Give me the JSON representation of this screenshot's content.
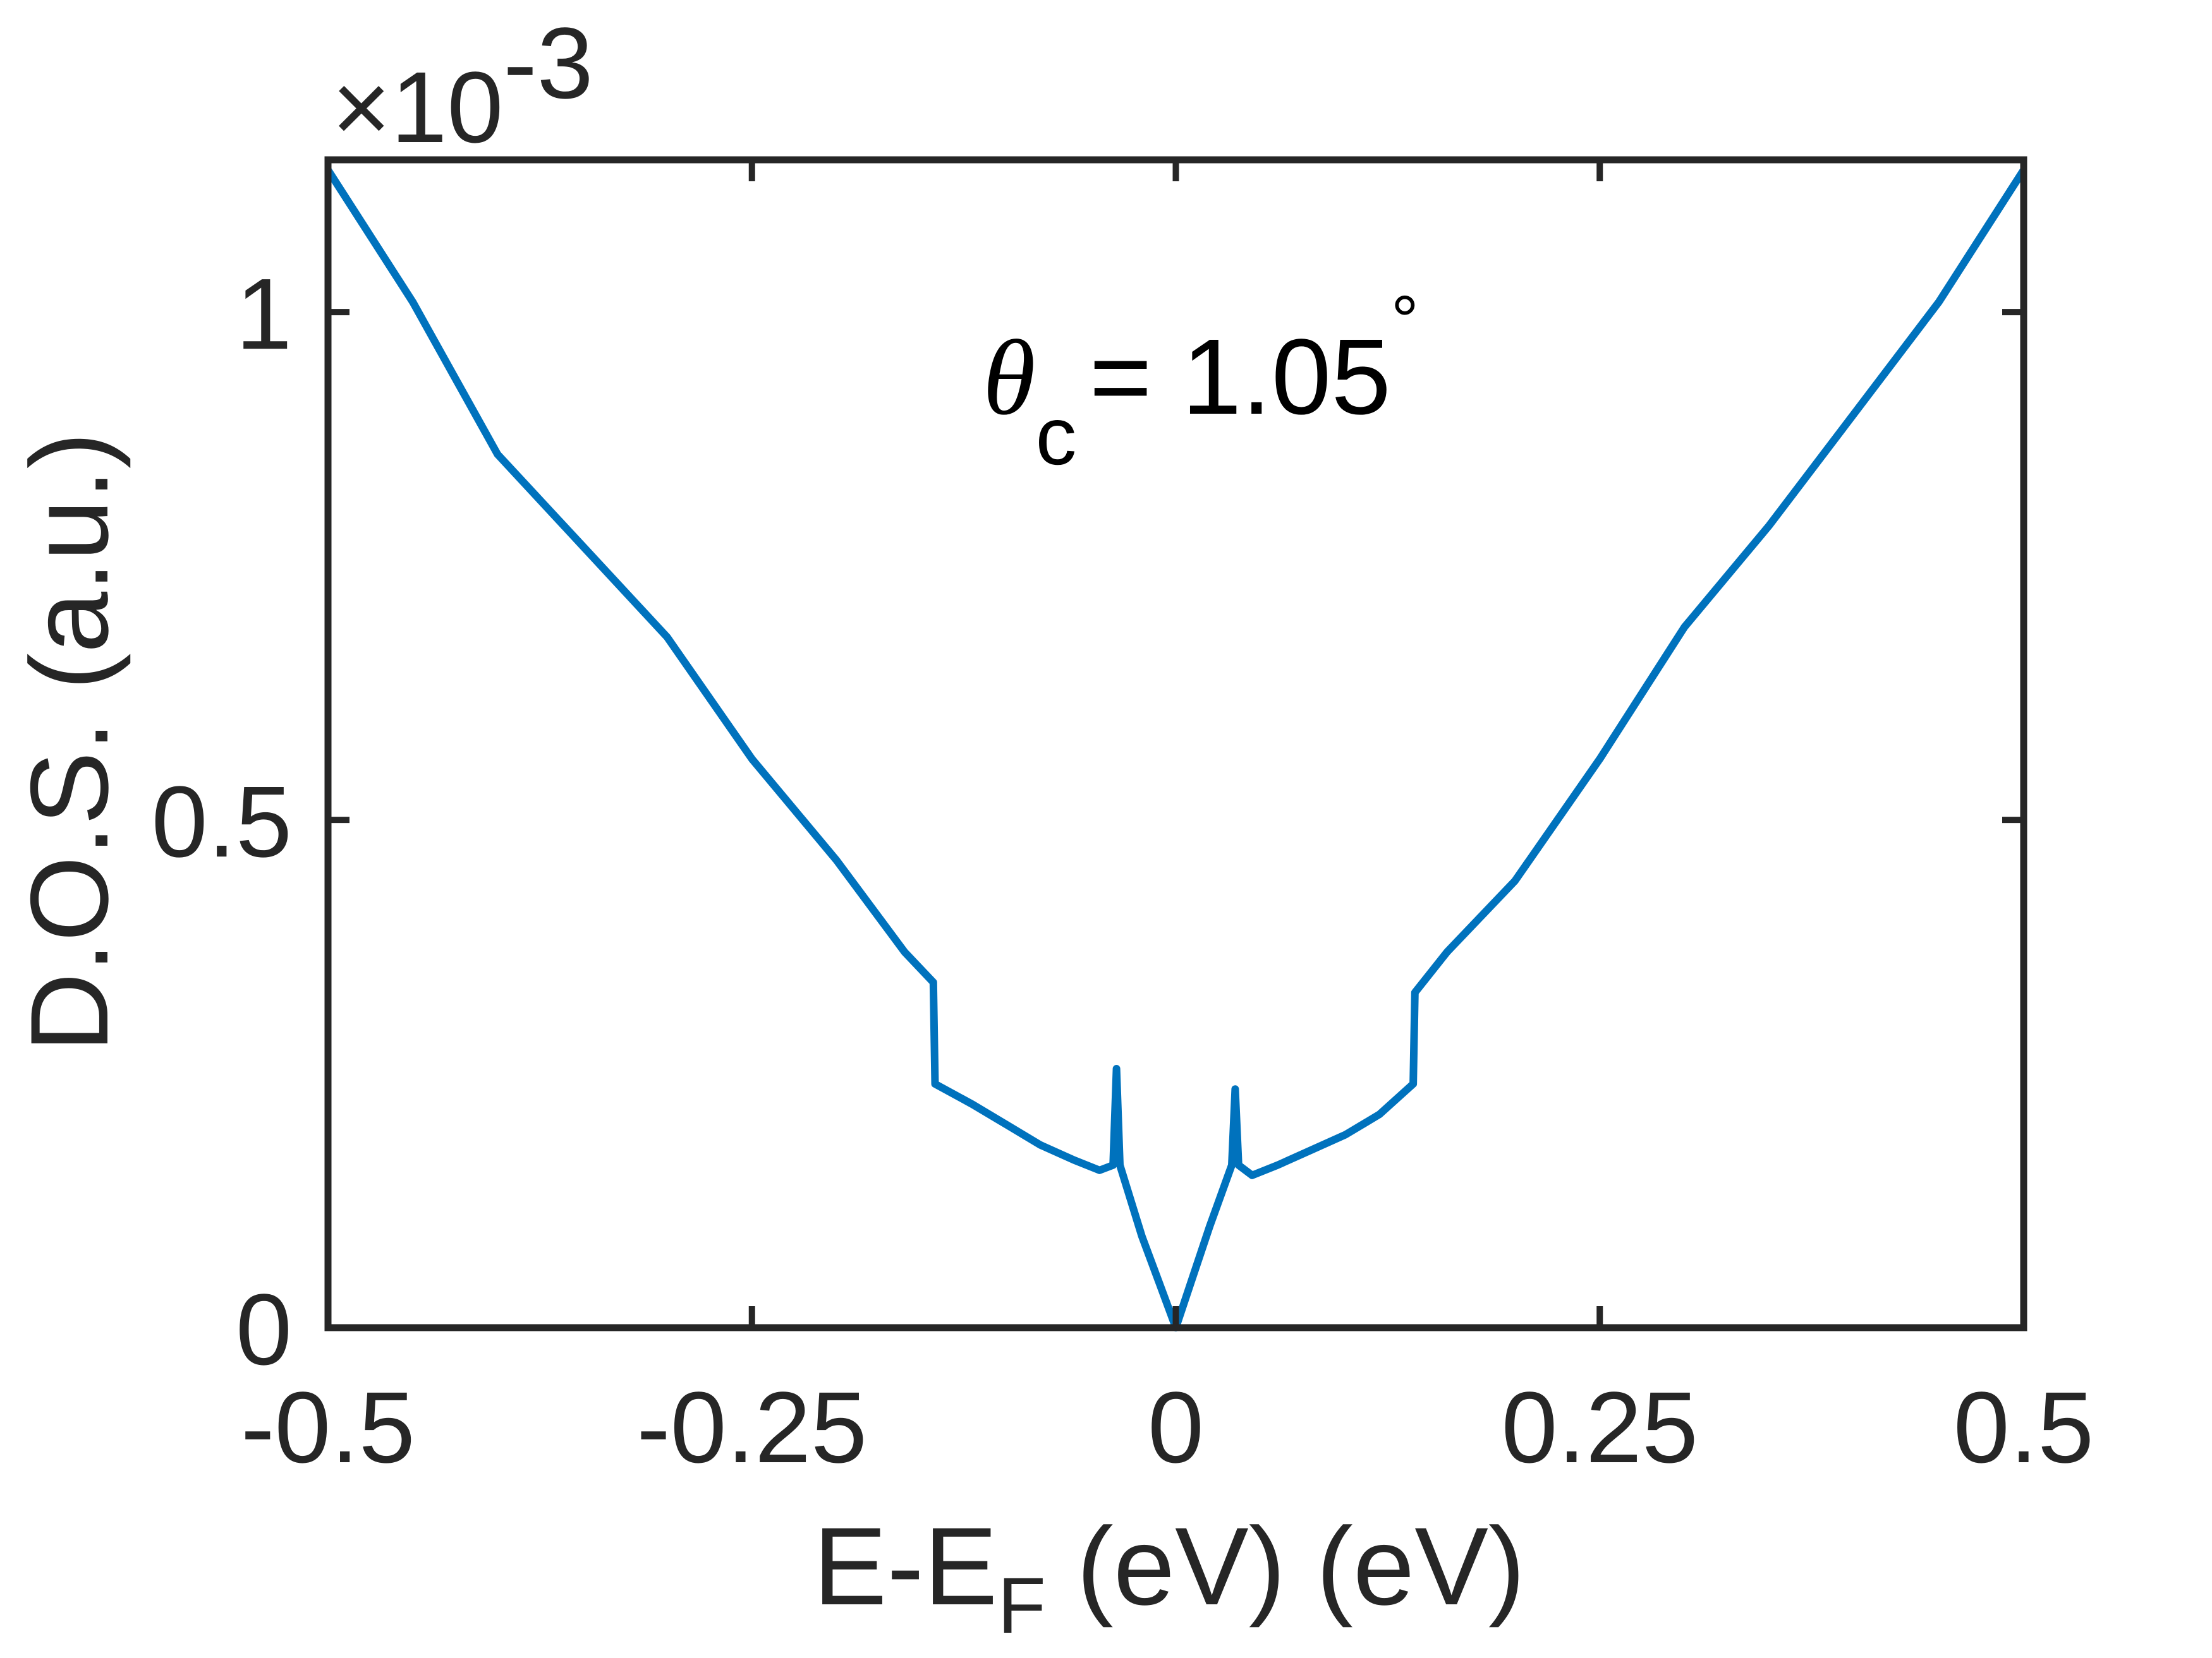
{
  "chart_data": {
    "type": "line",
    "x_label": {
      "main": "E-E",
      "sub": "F",
      "rest": " (eV) (eV)"
    },
    "y_label": "D.O.S. (a.u.)",
    "y_multiplier": {
      "base": "×10",
      "exponent": "-3"
    },
    "annotation": {
      "symbol": "θ",
      "sub": "c",
      "text": "= 1.05",
      "sup": "°"
    },
    "xlim": [
      -0.5,
      0.5
    ],
    "xticks": [
      -0.5,
      -0.25,
      0,
      0.25,
      0.5
    ],
    "ylim": [
      0,
      1.15
    ],
    "yticks": [
      0,
      0.5,
      1
    ],
    "grid": false,
    "series": [
      {
        "name": "D.O.S.",
        "color": "#0072bd",
        "x": [
          -0.5,
          -0.45,
          -0.4,
          -0.35,
          -0.3,
          -0.25,
          -0.2,
          -0.16,
          -0.143,
          -0.142,
          -0.12,
          -0.1,
          -0.08,
          -0.06,
          -0.045,
          -0.037,
          -0.035,
          -0.033,
          -0.02,
          -0.01,
          0,
          0.01,
          0.02,
          0.033,
          0.035,
          0.037,
          0.045,
          0.06,
          0.08,
          0.1,
          0.12,
          0.14,
          0.141,
          0.16,
          0.2,
          0.25,
          0.3,
          0.35,
          0.4,
          0.45,
          0.5
        ],
        "values": [
          1.14,
          1.01,
          0.86,
          0.77,
          0.68,
          0.56,
          0.46,
          0.37,
          0.34,
          0.24,
          0.22,
          0.2,
          0.18,
          0.165,
          0.155,
          0.16,
          0.255,
          0.16,
          0.09,
          0.045,
          0,
          0.05,
          0.1,
          0.16,
          0.235,
          0.16,
          0.15,
          0.16,
          0.175,
          0.19,
          0.21,
          0.24,
          0.33,
          0.37,
          0.44,
          0.56,
          0.69,
          0.79,
          0.9,
          1.01,
          1.14
        ]
      }
    ]
  }
}
